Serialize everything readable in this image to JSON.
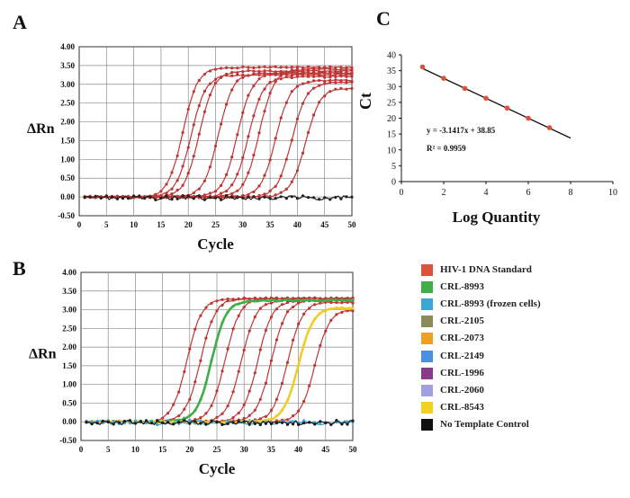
{
  "panels": {
    "a": "A",
    "b": "B",
    "c": "C"
  },
  "chart_data": [
    {
      "id": "A",
      "type": "line",
      "xlabel": "Cycle",
      "ylabel": "ΔRn",
      "xlim": [
        0,
        50
      ],
      "ylim": [
        -0.5,
        4.0
      ],
      "xticks": [
        "0",
        "5",
        "10",
        "15",
        "20",
        "25",
        "30",
        "35",
        "40",
        "45",
        "50"
      ],
      "yticks": [
        "-0.50",
        "0.00",
        "0.50",
        "1.00",
        "1.50",
        "2.00",
        "2.50",
        "3.00",
        "3.50",
        "4.00"
      ],
      "grid": true,
      "series": [
        {
          "color": "#c03535",
          "x0": 19,
          "plateau": 3.45
        },
        {
          "color": "#c03535",
          "x0": 20.5,
          "plateau": 3.25
        },
        {
          "color": "#c03535",
          "x0": 22,
          "plateau": 3.35
        },
        {
          "color": "#c03535",
          "x0": 25.5,
          "plateau": 3.3
        },
        {
          "color": "#c03535",
          "x0": 29,
          "plateau": 3.3
        },
        {
          "color": "#c03535",
          "x0": 31,
          "plateau": 3.2
        },
        {
          "color": "#c03535",
          "x0": 33,
          "plateau": 3.4
        },
        {
          "color": "#c03535",
          "x0": 36,
          "plateau": 3.1
        },
        {
          "color": "#c03535",
          "x0": 39,
          "plateau": 3.05
        },
        {
          "color": "#c03535",
          "x0": 41.5,
          "plateau": 2.9
        },
        {
          "color": "#222222",
          "x0": null,
          "plateau": 0
        }
      ]
    },
    {
      "id": "B",
      "type": "line",
      "xlabel": "Cycle",
      "ylabel": "ΔRn",
      "xlim": [
        0,
        50
      ],
      "ylim": [
        -0.5,
        4.0
      ],
      "xticks": [
        "0",
        "5",
        "10",
        "15",
        "20",
        "25",
        "30",
        "35",
        "40",
        "45",
        "50"
      ],
      "yticks": [
        "-0.50",
        "0.00",
        "0.50",
        "1.00",
        "1.50",
        "2.00",
        "2.50",
        "3.00",
        "3.50",
        "4.00"
      ],
      "grid": true,
      "series": [
        {
          "color": "#c03535",
          "x0": 19.5,
          "plateau": 3.3
        },
        {
          "color": "#c03535",
          "x0": 22,
          "plateau": 3.3
        },
        {
          "color": "#c03535",
          "x0": 26.5,
          "plateau": 3.3
        },
        {
          "color": "#c03535",
          "x0": 29.5,
          "plateau": 3.25
        },
        {
          "color": "#c03535",
          "x0": 32.5,
          "plateau": 3.25
        },
        {
          "color": "#c03535",
          "x0": 35,
          "plateau": 3.25
        },
        {
          "color": "#c03535",
          "x0": 38,
          "plateau": 3.2
        },
        {
          "color": "#c03535",
          "x0": 43,
          "plateau": 3.0
        },
        {
          "color": "#3fae48",
          "x0": 24,
          "plateau": 3.25
        },
        {
          "color": "#f0cc2a",
          "x0": 40,
          "plateau": 3.05
        },
        {
          "color": "#3aa7d6",
          "x0": null,
          "plateau": 0
        },
        {
          "color": "#1a1a1a",
          "x0": null,
          "plateau": 0
        }
      ]
    },
    {
      "id": "C",
      "type": "scatter",
      "xlabel": "Log Quantity",
      "ylabel": "Ct",
      "xlim": [
        0,
        10
      ],
      "ylim": [
        0,
        40
      ],
      "xticks": [
        "0",
        "2",
        "4",
        "6",
        "8",
        "10"
      ],
      "yticks": [
        "0",
        "5",
        "10",
        "15",
        "20",
        "25",
        "30",
        "35",
        "40"
      ],
      "points": [
        [
          1,
          36.2
        ],
        [
          2,
          32.6
        ],
        [
          3,
          29.4
        ],
        [
          4,
          26.3
        ],
        [
          5,
          23.2
        ],
        [
          6,
          20.0
        ],
        [
          7,
          17.0
        ]
      ],
      "fit": {
        "slope": -3.1417,
        "intercept": 38.85,
        "x_range": [
          1,
          8
        ]
      },
      "annotations": [
        "y = -3.1417x + 38.85",
        "R² = 0.9959"
      ]
    }
  ],
  "legend": [
    {
      "label": "HIV-1 DNA Standard",
      "color": "#d9533a"
    },
    {
      "label": "CRL-8993",
      "color": "#3fae48"
    },
    {
      "label": "CRL-8993 (frozen cells)",
      "color": "#3aa7d6"
    },
    {
      "label": "CRL-2105",
      "color": "#8a8a5a"
    },
    {
      "label": "CRL-2073",
      "color": "#f0a020"
    },
    {
      "label": "CRL-2149",
      "color": "#4a8fe0"
    },
    {
      "label": "CRL-1996",
      "color": "#8a3a8a"
    },
    {
      "label": "CRL-2060",
      "color": "#a0a0e0"
    },
    {
      "label": "CRL-8543",
      "color": "#f0d020"
    },
    {
      "label": "No Template Control",
      "color": "#111111"
    }
  ]
}
